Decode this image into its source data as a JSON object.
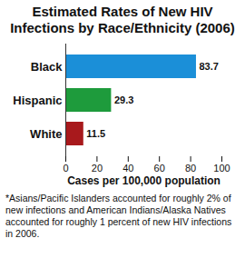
{
  "chart_data": {
    "type": "bar",
    "orientation": "horizontal",
    "title": "Estimated Rates of New HIV Infections by Race/Ethnicity (2006)",
    "categories": [
      "Black",
      "Hispanic",
      "White"
    ],
    "values": [
      83.7,
      29.3,
      11.5
    ],
    "colors": [
      "#1b8fd8",
      "#1e9b3c",
      "#a8191c"
    ],
    "xlabel": "Cases per 100,000 population",
    "xlim": [
      0,
      100
    ],
    "xticks": [
      0,
      20,
      40,
      60,
      80,
      100
    ],
    "data_labels": true,
    "grid": false,
    "annotations": [
      "*Asians/Pacific Islanders accounted for roughly 2% of new infections and American Indians/Alaska Natives accounted for roughly 1 percent of new HIV infections in 2006."
    ]
  }
}
